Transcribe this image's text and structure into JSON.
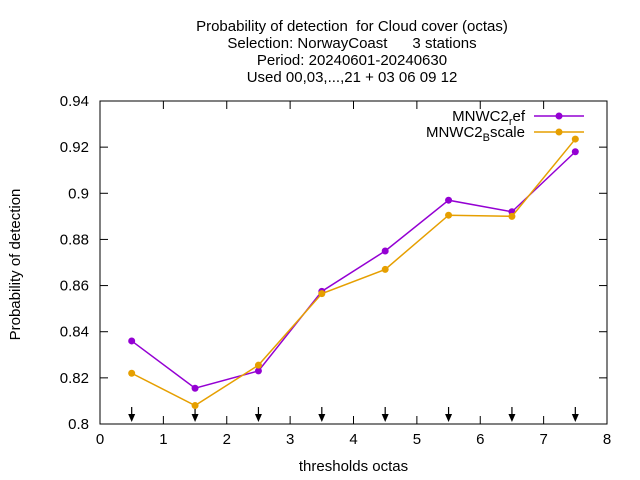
{
  "chart_data": {
    "type": "line",
    "title_lines": [
      "Probability of detection  for Cloud cover (octas)",
      "Selection: NorwayCoast      3 stations",
      "Period: 20240601-20240630",
      "Used 00,03,...,21 + 03 06 09 12"
    ],
    "xlabel": "thresholds octas",
    "ylabel": "Probability of detection",
    "xlim": [
      0,
      8
    ],
    "ylim": [
      0.8,
      0.94
    ],
    "xticks": [
      0,
      1,
      2,
      3,
      4,
      5,
      6,
      7,
      8
    ],
    "yticks": [
      0.8,
      0.82,
      0.84,
      0.86,
      0.88,
      0.9,
      0.92,
      0.94
    ],
    "x": [
      0.5,
      1.5,
      2.5,
      3.5,
      4.5,
      5.5,
      6.5,
      7.5
    ],
    "series": [
      {
        "name": "MNWC2_ref",
        "legend_main": "MNWC2",
        "legend_sub": "r",
        "legend_rest": "ef",
        "color": "#9400d3",
        "values": [
          0.836,
          0.8155,
          0.823,
          0.8575,
          0.875,
          0.897,
          0.892,
          0.918
        ]
      },
      {
        "name": "MNWC2_Bscale",
        "legend_main": "MNWC2",
        "legend_sub": "B",
        "legend_rest": "scale",
        "color": "#e69f00",
        "values": [
          0.822,
          0.808,
          0.8255,
          0.8565,
          0.867,
          0.8905,
          0.89,
          0.9235
        ]
      }
    ],
    "markers_at_x": [
      0.5,
      1.5,
      2.5,
      3.5,
      4.5,
      5.5,
      6.5,
      7.5
    ],
    "grid": false,
    "legend_position": "top-right"
  }
}
